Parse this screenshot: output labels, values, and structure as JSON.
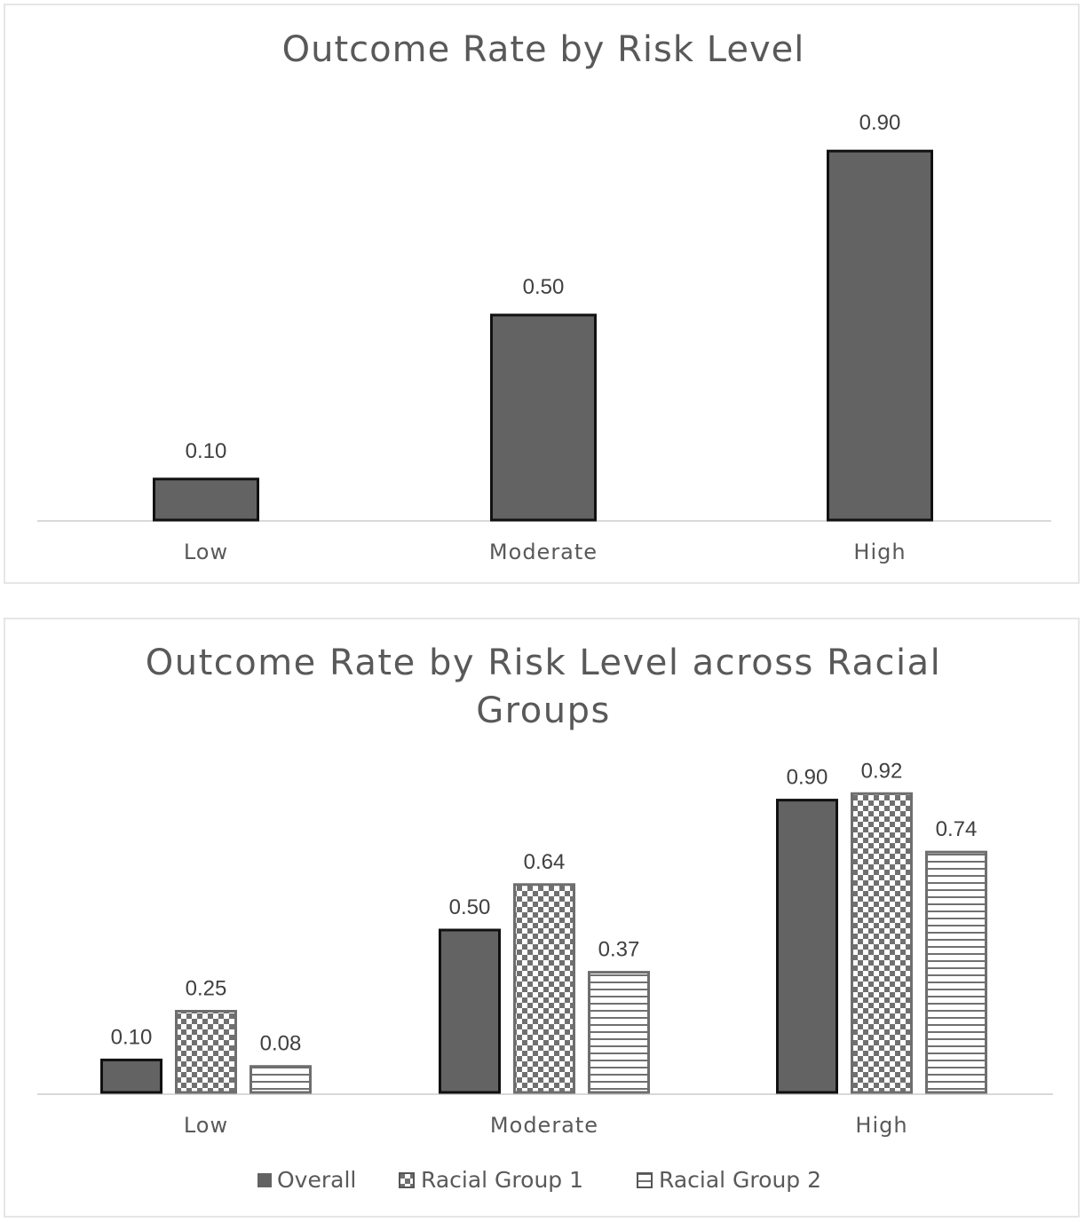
{
  "chart_data": [
    {
      "type": "bar",
      "title": "Outcome Rate by Risk Level",
      "categories": [
        "Low",
        "Moderate",
        "High"
      ],
      "series": [
        {
          "name": "Overall",
          "values": [
            0.1,
            0.5,
            0.9
          ]
        }
      ],
      "data_labels": [
        [
          "0.10",
          "0.50",
          "0.90"
        ]
      ],
      "ylim": [
        0,
        1
      ],
      "xlabel": "",
      "ylabel": "",
      "legend": "none",
      "grid": false
    },
    {
      "type": "bar",
      "title_lines": [
        "Outcome Rate by Risk Level across Racial",
        "Groups"
      ],
      "categories": [
        "Low",
        "Moderate",
        "High"
      ],
      "series": [
        {
          "name": "Overall",
          "values": [
            0.1,
            0.5,
            0.9
          ]
        },
        {
          "name": "Racial Group 1",
          "values": [
            0.25,
            0.64,
            0.92
          ]
        },
        {
          "name": "Racial Group 2",
          "values": [
            0.08,
            0.37,
            0.74
          ]
        }
      ],
      "data_labels": [
        [
          "0.10",
          "0.50",
          "0.90"
        ],
        [
          "0.25",
          "0.64",
          "0.92"
        ],
        [
          "0.08",
          "0.37",
          "0.74"
        ]
      ],
      "legend_labels": [
        "Overall",
        "Racial Group 1",
        "Racial Group 2"
      ],
      "ylim": [
        0,
        1
      ],
      "xlabel": "",
      "ylabel": "",
      "legend": "bottom",
      "grid": false
    }
  ],
  "colors": {
    "bar_fill": "#636363",
    "bar_stroke": "#111111",
    "pattern_dark": "#707070",
    "axis": "#d9d9d9"
  }
}
